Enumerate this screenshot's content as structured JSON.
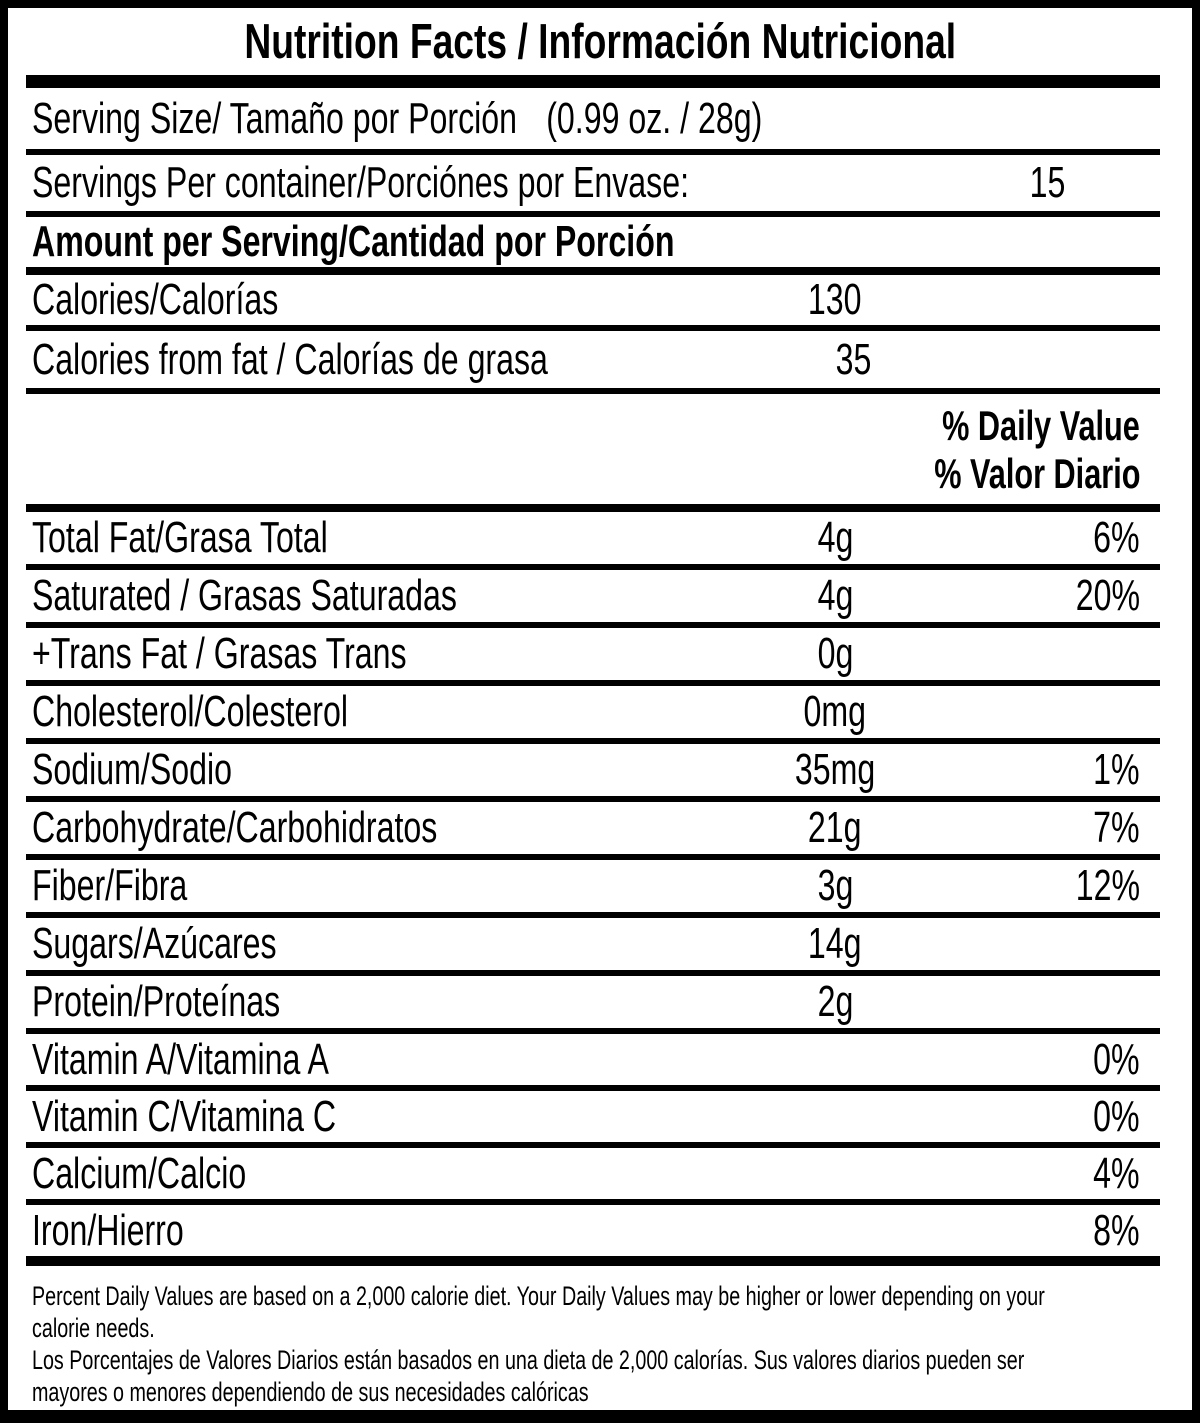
{
  "colors": {
    "text": "#000000",
    "background": "#ffffff"
  },
  "label": {
    "title": "Nutrition Facts / Información Nutricional",
    "serving_size": {
      "label": "Serving Size/ Tamaño por Porción",
      "value": "(0.99 oz. / 28g)"
    },
    "servings_per_container": {
      "label": "Servings Per container/Porciónes por Envase:",
      "value": "15"
    },
    "amount_per_serving_header": "Amount per Serving/Cantidad por Porción",
    "calories": {
      "label": "Calories/Calorías",
      "value": "130"
    },
    "calories_from_fat": {
      "label": "Calories from fat / Calorías de grasa",
      "value": "35"
    },
    "daily_value_header": {
      "en": "% Daily Value",
      "es": "% Valor Diario"
    },
    "nutrients": [
      {
        "label": "Total Fat/Grasa Total",
        "amount": "4g",
        "daily_value": "6%"
      },
      {
        "label": "Saturated / Grasas Saturadas",
        "amount": "4g",
        "daily_value": "20%"
      },
      {
        "label": "+Trans Fat / Grasas Trans",
        "amount": "0g",
        "daily_value": ""
      },
      {
        "label": "Cholesterol/Colesterol",
        "amount": "0mg",
        "daily_value": ""
      },
      {
        "label": "Sodium/Sodio",
        "amount": "35mg",
        "daily_value": "1%"
      },
      {
        "label": "Carbohydrate/Carbohidratos",
        "amount": "21g",
        "daily_value": "7%"
      },
      {
        "label": "Fiber/Fibra",
        "amount": "3g",
        "daily_value": "12%"
      },
      {
        "label": "Sugars/Azúcares",
        "amount": "14g",
        "daily_value": ""
      },
      {
        "label": "Protein/Proteínas",
        "amount": "2g",
        "daily_value": ""
      }
    ],
    "vitamins_minerals": [
      {
        "label": "Vitamin A/Vitamina A",
        "daily_value": "0%"
      },
      {
        "label": "Vitamin C/Vitamina C",
        "daily_value": "0%"
      },
      {
        "label": "Calcium/Calcio",
        "daily_value": "4%"
      },
      {
        "label": "Iron/Hierro",
        "daily_value": "8%"
      }
    ],
    "footnote": {
      "en_line1": "Percent Daily Values are based on a 2,000 calorie diet. Your Daily Values may be higher or lower depending on your",
      "en_line2": "calorie needs.",
      "es_line1": "Los Porcentajes de Valores Diarios están basados en una dieta de 2,000 calorías. Sus valores diarios pueden ser",
      "es_line2": "mayores o menores dependiendo de sus necesidades calóricas"
    }
  }
}
